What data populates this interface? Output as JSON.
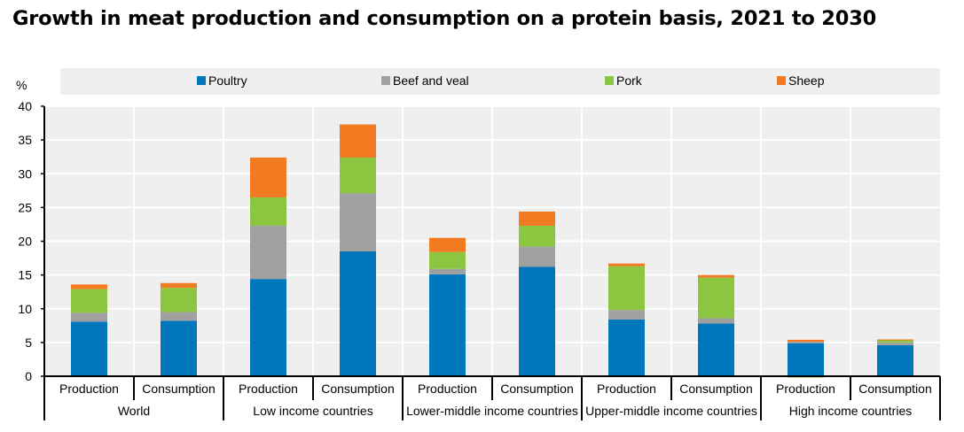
{
  "chart_data": {
    "type": "bar",
    "stacked": true,
    "title": "Growth in meat production and consumption on a protein basis, 2021 to 2030",
    "ylabel": "%",
    "ylim": [
      0,
      40
    ],
    "yticks": [
      0,
      5,
      10,
      15,
      20,
      25,
      30,
      35,
      40
    ],
    "grid": true,
    "legend_position": "top",
    "groups": [
      "World",
      "Low income countries",
      "Lower-middle income countries",
      "Upper-middle income countries",
      "High income countries"
    ],
    "categories": [
      "Production",
      "Consumption",
      "Production",
      "Consumption",
      "Production",
      "Consumption",
      "Production",
      "Consumption",
      "Production",
      "Consumption"
    ],
    "series": [
      {
        "name": "Poultry",
        "color": "#0077bd",
        "values": [
          8.1,
          8.2,
          14.4,
          18.5,
          15.1,
          16.2,
          8.4,
          7.8,
          4.9,
          4.6
        ]
      },
      {
        "name": "Beef and veal",
        "color": "#a0a0a0",
        "values": [
          1.3,
          1.3,
          7.9,
          8.6,
          0.8,
          3.0,
          1.4,
          0.8,
          0.2,
          0.4
        ]
      },
      {
        "name": "Pork",
        "color": "#8cc540",
        "values": [
          3.5,
          3.6,
          4.2,
          5.3,
          2.5,
          3.1,
          6.5,
          6.0,
          -0.2,
          0.4
        ]
      },
      {
        "name": "Sheep",
        "color": "#f27b21",
        "values": [
          0.7,
          0.7,
          5.9,
          4.9,
          2.1,
          2.1,
          0.4,
          0.4,
          0.3,
          0.05
        ]
      }
    ]
  }
}
